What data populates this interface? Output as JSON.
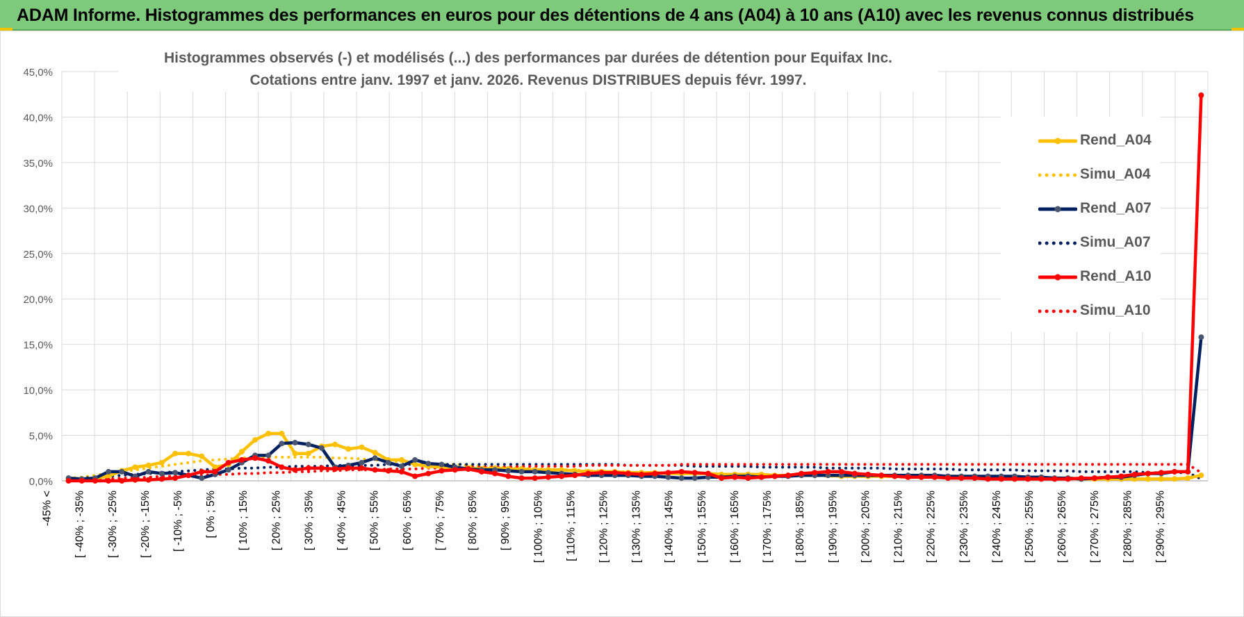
{
  "header": {
    "title": "ADAM Informe. Histogrammes des performances en euros pour des détentions de 4 ans (A04) à 10 ans (A10) avec les revenus connus distribués"
  },
  "colors": {
    "banner": "#7ec97b",
    "a04": "#FFC000",
    "a07": "#002060",
    "a10": "#FF0000",
    "grid": "#d9d9d9",
    "text": "#595959"
  },
  "chart_data": {
    "type": "line",
    "title_line1": "Histogrammes observés (-) et modélisés (...) des performances par durées de détention pour Equifax Inc.",
    "title_line2": "Cotations entre janv. 1997 et janv. 2026. Revenus DISTRIBUES depuis févr. 1997.",
    "grid": true,
    "legend_position": "right",
    "ylim": [
      0,
      45
    ],
    "y_ticks": [
      "0,0%",
      "5,0%",
      "10,0%",
      "15,0%",
      "20,0%",
      "25,0%",
      "30,0%",
      "35,0%",
      "40,0%",
      "45,0%"
    ],
    "x_labels": [
      "-45% <",
      "[ -40% ; -35%",
      "[ -30% ; -25%",
      "[ -20% ; -15%",
      "[ -10% ; -5%",
      "[ 0% ; 5%",
      "[ 10% ; 15%",
      "[ 20% ; 25%",
      "[ 30% ; 35%",
      "[ 40% ; 45%",
      "[ 50% ; 55%",
      "[ 60% ; 65%",
      "[ 70% ; 75%",
      "[ 80% ; 85%",
      "[ 90% ; 95%",
      "[ 100% ; 105%",
      "[ 110% ; 115%",
      "[ 120% ; 125%",
      "[ 130% ; 135%",
      "[ 140% ; 145%",
      "[ 150% ; 155%",
      "[ 160% ; 165%",
      "[ 170% ; 175%",
      "[ 180% ; 185%",
      "[ 190% ; 195%",
      "[ 200% ; 205%",
      "[ 210% ; 215%",
      "[ 220% ; 225%",
      "[ 230% ; 235%",
      "[ 240% ; 245%",
      "[ 250% ; 255%",
      "[ 260% ; 265%",
      "[ 270% ; 275%",
      "[ 280% ; 285%",
      "[ 290% ; 295%"
    ],
    "series": [
      {
        "name": "Rend_A04",
        "style": "solid",
        "color": "#FFC000",
        "values": [
          0.2,
          0.2,
          0.3,
          0.5,
          1.1,
          1.5,
          1.7,
          2.0,
          3.0,
          3.0,
          2.7,
          1.5,
          1.8,
          3.2,
          4.5,
          5.2,
          5.2,
          3.0,
          3.0,
          3.8,
          4.0,
          3.5,
          3.7,
          3.1,
          2.3,
          2.3,
          1.8,
          1.6,
          1.5,
          1.4,
          1.4,
          1.3,
          1.4,
          1.3,
          1.3,
          1.2,
          1.2,
          1.2,
          1.1,
          1.0,
          1.0,
          1.0,
          0.9,
          0.9,
          0.9,
          0.8,
          0.8,
          0.8,
          0.8,
          0.7,
          0.7,
          0.7,
          0.7,
          0.6,
          0.6,
          0.6,
          0.6,
          0.6,
          0.5,
          0.5,
          0.5,
          0.5,
          0.5,
          0.4,
          0.4,
          0.4,
          0.4,
          0.4,
          0.4,
          0.3,
          0.3,
          0.3,
          0.3,
          0.3,
          0.3,
          0.3,
          0.2,
          0.2,
          0.2,
          0.2,
          0.2,
          0.2,
          0.2,
          0.2,
          0.3,
          0.6
        ]
      },
      {
        "name": "Simu_A04",
        "style": "dotted",
        "color": "#FFC000",
        "values": [
          0.3,
          0.4,
          0.6,
          0.8,
          1.0,
          1.2,
          1.4,
          1.6,
          1.8,
          2.0,
          2.2,
          2.3,
          2.4,
          2.5,
          2.6,
          2.6,
          2.6,
          2.6,
          2.6,
          2.6,
          2.5,
          2.5,
          2.4,
          2.3,
          2.2,
          2.1,
          2.0,
          1.9,
          1.8,
          1.8,
          1.7,
          1.6,
          1.5,
          1.5,
          1.4,
          1.3,
          1.3,
          1.2,
          1.2,
          1.1,
          1.1,
          1.0,
          1.0,
          0.9,
          0.9,
          0.9,
          0.8,
          0.8,
          0.8,
          0.7,
          0.7,
          0.7,
          0.7,
          0.6,
          0.6,
          0.6,
          0.6,
          0.5,
          0.5,
          0.5,
          0.5,
          0.5,
          0.4,
          0.4,
          0.4,
          0.4,
          0.4,
          0.4,
          0.3,
          0.3,
          0.3,
          0.3,
          0.3,
          0.3,
          0.3,
          0.3,
          0.2,
          0.2,
          0.2,
          0.2,
          0.2,
          0.2,
          0.2,
          0.2,
          0.2,
          0.6
        ]
      },
      {
        "name": "Rend_A07",
        "style": "solid",
        "color": "#002060",
        "values": [
          0.3,
          0.2,
          0.3,
          1.0,
          1.0,
          0.5,
          1.0,
          0.8,
          0.9,
          0.6,
          0.3,
          0.7,
          1.2,
          2.0,
          2.8,
          2.8,
          4.1,
          4.2,
          4.0,
          3.6,
          1.5,
          1.7,
          2.0,
          2.5,
          2.0,
          1.6,
          2.3,
          1.9,
          1.8,
          1.5,
          1.3,
          1.2,
          1.2,
          1.1,
          1.0,
          1.0,
          0.9,
          0.8,
          0.7,
          0.6,
          0.6,
          0.6,
          0.6,
          0.5,
          0.5,
          0.4,
          0.3,
          0.3,
          0.4,
          0.4,
          0.5,
          0.5,
          0.4,
          0.5,
          0.5,
          0.6,
          0.6,
          0.6,
          0.6,
          0.6,
          0.6,
          0.6,
          0.6,
          0.6,
          0.6,
          0.6,
          0.5,
          0.5,
          0.5,
          0.5,
          0.5,
          0.5,
          0.4,
          0.4,
          0.3,
          0.3,
          0.2,
          0.3,
          0.4,
          0.4,
          0.6,
          0.8,
          0.8,
          1.0,
          1.0,
          15.8
        ]
      },
      {
        "name": "Simu_A07",
        "style": "dotted",
        "color": "#002060",
        "values": [
          0.2,
          0.3,
          0.4,
          0.5,
          0.6,
          0.7,
          0.8,
          0.9,
          1.0,
          1.1,
          1.2,
          1.3,
          1.3,
          1.4,
          1.4,
          1.5,
          1.5,
          1.6,
          1.6,
          1.6,
          1.7,
          1.7,
          1.7,
          1.7,
          1.8,
          1.8,
          1.8,
          1.8,
          1.8,
          1.8,
          1.8,
          1.8,
          1.8,
          1.8,
          1.8,
          1.8,
          1.8,
          1.8,
          1.8,
          1.8,
          1.8,
          1.8,
          1.7,
          1.7,
          1.7,
          1.7,
          1.7,
          1.6,
          1.6,
          1.6,
          1.6,
          1.6,
          1.5,
          1.5,
          1.5,
          1.5,
          1.5,
          1.4,
          1.4,
          1.4,
          1.4,
          1.4,
          1.3,
          1.3,
          1.3,
          1.3,
          1.3,
          1.2,
          1.2,
          1.2,
          1.2,
          1.2,
          1.1,
          1.1,
          1.1,
          1.1,
          1.0,
          1.0,
          1.0,
          1.0,
          1.0,
          0.9,
          0.9,
          0.9,
          0.9,
          0.2
        ]
      },
      {
        "name": "Rend_A10",
        "style": "solid",
        "color": "#FF0000",
        "values": [
          0.0,
          0.0,
          0.0,
          0.0,
          0.0,
          0.1,
          0.1,
          0.2,
          0.3,
          0.6,
          1.0,
          1.0,
          2.0,
          2.3,
          2.5,
          2.2,
          1.5,
          1.2,
          1.4,
          1.4,
          1.3,
          1.4,
          1.4,
          1.2,
          1.1,
          1.0,
          0.5,
          0.8,
          1.1,
          1.2,
          1.3,
          1.0,
          0.8,
          0.5,
          0.3,
          0.3,
          0.4,
          0.5,
          0.6,
          0.8,
          0.9,
          0.9,
          0.8,
          0.7,
          0.8,
          0.9,
          1.0,
          0.9,
          0.8,
          0.3,
          0.4,
          0.3,
          0.4,
          0.5,
          0.6,
          0.8,
          0.9,
          1.0,
          1.0,
          0.8,
          0.7,
          0.6,
          0.5,
          0.4,
          0.4,
          0.4,
          0.3,
          0.3,
          0.3,
          0.2,
          0.2,
          0.2,
          0.2,
          0.2,
          0.2,
          0.2,
          0.3,
          0.3,
          0.4,
          0.5,
          0.7,
          0.8,
          0.9,
          1.0,
          1.0,
          42.4
        ]
      },
      {
        "name": "Simu_A10",
        "style": "dotted",
        "color": "#FF0000",
        "values": [
          0.1,
          0.1,
          0.2,
          0.2,
          0.3,
          0.3,
          0.4,
          0.5,
          0.5,
          0.6,
          0.6,
          0.7,
          0.7,
          0.8,
          0.8,
          0.9,
          0.9,
          1.0,
          1.0,
          1.1,
          1.1,
          1.2,
          1.2,
          1.2,
          1.3,
          1.3,
          1.3,
          1.4,
          1.4,
          1.4,
          1.5,
          1.5,
          1.5,
          1.5,
          1.6,
          1.6,
          1.6,
          1.6,
          1.6,
          1.7,
          1.7,
          1.7,
          1.7,
          1.7,
          1.7,
          1.7,
          1.8,
          1.8,
          1.8,
          1.8,
          1.8,
          1.8,
          1.8,
          1.8,
          1.8,
          1.8,
          1.8,
          1.8,
          1.8,
          1.8,
          1.8,
          1.8,
          1.8,
          1.8,
          1.8,
          1.8,
          1.8,
          1.8,
          1.8,
          1.8,
          1.8,
          1.8,
          1.8,
          1.8,
          1.8,
          1.8,
          1.8,
          1.8,
          1.8,
          1.8,
          1.8,
          1.8,
          1.8,
          1.8,
          1.8,
          0.9
        ]
      }
    ]
  }
}
